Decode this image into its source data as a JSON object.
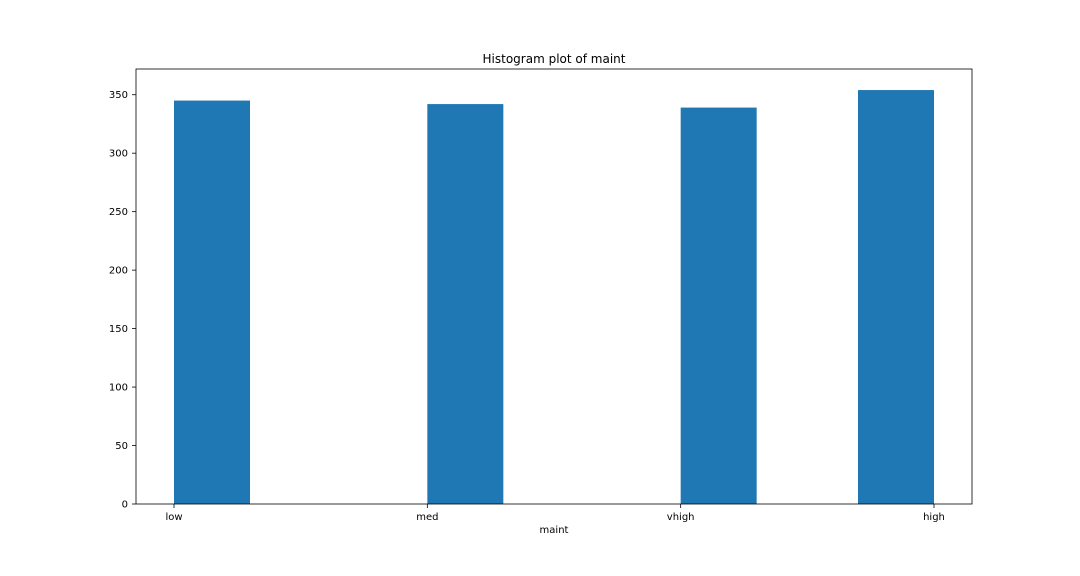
{
  "chart_data": {
    "type": "bar",
    "title": "Histogram plot of maint",
    "xlabel": "maint",
    "ylabel": "",
    "categories": [
      "low",
      "med",
      "vhigh",
      "high"
    ],
    "values": [
      345,
      342,
      339,
      354
    ],
    "ylim": [
      0,
      372
    ],
    "yticks": [
      0,
      50,
      100,
      150,
      200,
      250,
      300,
      350
    ],
    "grid": false,
    "bar_color": "#1f77b4"
  }
}
